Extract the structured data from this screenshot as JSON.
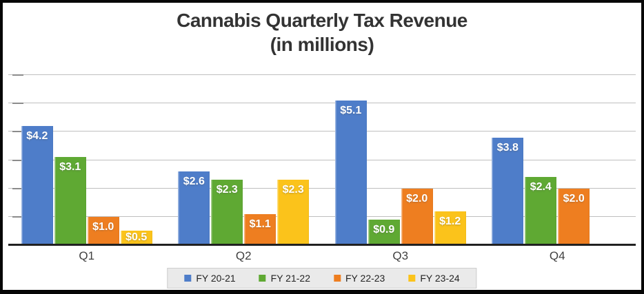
{
  "title": {
    "line1": "Cannabis Quarterly Tax Revenue",
    "line2": "(in millions)"
  },
  "chart_data": {
    "type": "bar",
    "title": "Cannabis Quarterly Tax Revenue (in millions)",
    "xlabel": "",
    "ylabel": "",
    "categories": [
      "Q1",
      "Q2",
      "Q3",
      "Q4"
    ],
    "series": [
      {
        "name": "FY 20-21",
        "color": "#4e7dc9",
        "values": [
          4.2,
          2.6,
          5.1,
          3.8
        ],
        "labels": [
          "$4.2",
          "$2.6",
          "$5.1",
          "$3.8"
        ]
      },
      {
        "name": "FY 21-22",
        "color": "#5fa933",
        "values": [
          3.1,
          2.3,
          0.9,
          2.4
        ],
        "labels": [
          "$3.1",
          "$2.3",
          "$0.9",
          "$2.4"
        ]
      },
      {
        "name": "FY 22-23",
        "color": "#ee7e20",
        "values": [
          1.0,
          1.1,
          2.0,
          2.0
        ],
        "labels": [
          "$1.0",
          "$1.1",
          "$2.0",
          "$2.0"
        ]
      },
      {
        "name": "FY 23-24",
        "color": "#fbc31b",
        "values": [
          0.5,
          2.3,
          1.2,
          null
        ],
        "labels": [
          "$0.5",
          "$2.3",
          "$1.2",
          null
        ]
      }
    ],
    "ylim": [
      0,
      6
    ],
    "gridline_interval": 1.0,
    "grid": true,
    "legend_position": "bottom",
    "data_label_color": "#ffffff"
  }
}
